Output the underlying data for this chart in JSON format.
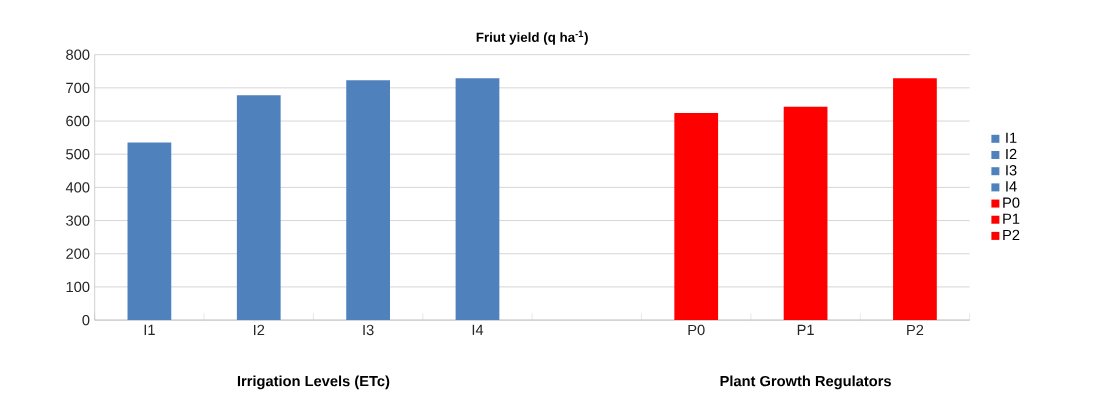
{
  "chart_data": {
    "type": "bar",
    "title": "**Friut yield (q ha$^{-1}$)**",
    "categories": [
      "I1",
      "I2",
      "I3",
      "I4",
      null,
      "P0",
      "P1",
      "P2"
    ],
    "series": [
      {
        "name": "I1",
        "color": "#4f81bd",
        "values": [
          535,
          null,
          null,
          null,
          null,
          null,
          null,
          null
        ]
      },
      {
        "name": "I2",
        "color": "#4f81bd",
        "values": [
          null,
          678,
          null,
          null,
          null,
          null,
          null,
          null
        ]
      },
      {
        "name": "I3",
        "color": "#4f81bd",
        "values": [
          null,
          null,
          723,
          null,
          null,
          null,
          null,
          null
        ]
      },
      {
        "name": "I4",
        "color": "#4f81bd",
        "values": [
          null,
          null,
          null,
          729,
          null,
          null,
          null,
          null
        ]
      },
      {
        "name": "P0",
        "color": "#ff0000",
        "values": [
          null,
          null,
          null,
          null,
          null,
          624,
          null,
          null
        ]
      },
      {
        "name": "P1",
        "color": "#ff0000",
        "values": [
          null,
          null,
          null,
          null,
          null,
          null,
          643,
          null
        ]
      },
      {
        "name": "P2",
        "color": "#ff0000",
        "values": [
          null,
          null,
          null,
          null,
          null,
          null,
          null,
          729
        ]
      }
    ],
    "ylim": [
      0,
      800
    ],
    "yticks": [
      0,
      100,
      200,
      300,
      400,
      500,
      600,
      700,
      800
    ],
    "grid": "y",
    "legend": "right",
    "annotations": [
      "**Irrigation Levels (ETc)**",
      "**Plant  Growth Regulators**"
    ]
  }
}
